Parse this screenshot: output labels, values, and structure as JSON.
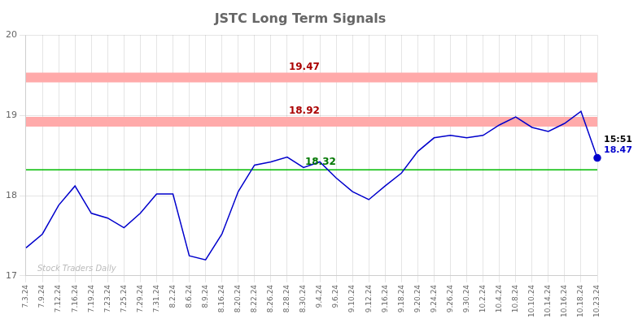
{
  "chart_data": {
    "type": "line",
    "title": "JSTC Long Term Signals",
    "categories": [
      "7.3.24",
      "7.9.24",
      "7.12.24",
      "7.16.24",
      "7.19.24",
      "7.23.24",
      "7.25.24",
      "7.29.24",
      "7.31.24",
      "8.2.24",
      "8.6.24",
      "8.9.24",
      "8.16.24",
      "8.20.24",
      "8.22.24",
      "8.26.24",
      "8.28.24",
      "8.30.24",
      "9.4.24",
      "9.6.24",
      "9.10.24",
      "9.12.24",
      "9.16.24",
      "9.18.24",
      "9.20.24",
      "9.24.24",
      "9.26.24",
      "9.30.24",
      "10.2.24",
      "10.4.24",
      "10.8.24",
      "10.10.24",
      "10.14.24",
      "10.16.24",
      "10.18.24",
      "10.23.24"
    ],
    "values": [
      17.35,
      17.52,
      17.88,
      18.12,
      17.78,
      17.72,
      17.6,
      17.78,
      18.02,
      18.02,
      17.25,
      17.2,
      17.52,
      18.05,
      18.38,
      18.42,
      18.48,
      18.35,
      18.42,
      18.22,
      18.05,
      17.95,
      18.12,
      18.28,
      18.55,
      18.72,
      18.75,
      18.72,
      18.75,
      18.88,
      18.98,
      18.85,
      18.8,
      18.9,
      19.05,
      18.47
    ],
    "color": "#0000cc",
    "ylim": [
      17.0,
      20.0
    ],
    "yticks": [
      17,
      18,
      19,
      20
    ],
    "grid": true,
    "hlines": [
      {
        "value": 19.47,
        "color": "#ffaaaa",
        "line_style": "band",
        "label": "19.47",
        "label_color": "#aa0000"
      },
      {
        "value": 18.92,
        "color": "#ffaaaa",
        "line_style": "band",
        "label": "18.92",
        "label_color": "#aa0000"
      },
      {
        "value": 18.32,
        "color": "#00bb00",
        "line_style": "solid",
        "label": "18.32",
        "label_color": "#007700"
      }
    ],
    "annotations": [
      {
        "text": "15:51",
        "color": "#000000"
      },
      {
        "text": "18.47",
        "color": "#0000cc"
      }
    ],
    "watermark": {
      "text": "Stock Traders Daily",
      "color": "#bbbbbb"
    }
  }
}
